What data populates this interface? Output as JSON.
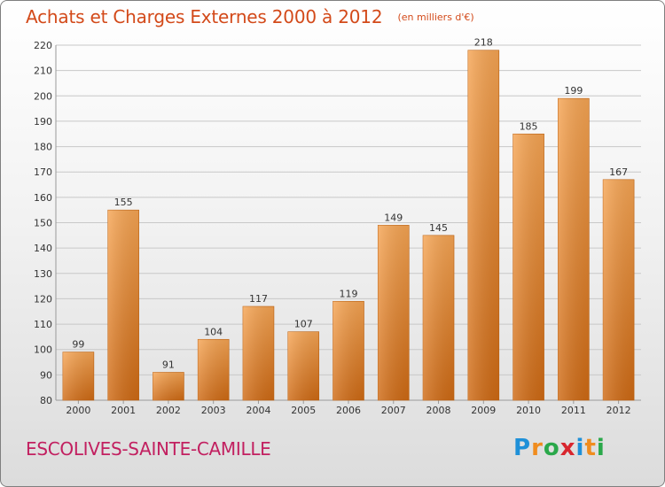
{
  "header": {
    "title": "Achats et Charges Externes 2000 à 2012",
    "subtitle": "(en milliers d'€)"
  },
  "footer": {
    "commune": "ESCOLIVES-SAINTE-CAMILLE",
    "logo_letters": [
      "P",
      "r",
      "o",
      "x",
      "i",
      "t",
      "i"
    ],
    "logo_colors": [
      "#1e90d8",
      "#f08c1e",
      "#2aa84a",
      "#d8262e",
      "#1e90d8",
      "#f08c1e",
      "#2aa84a"
    ]
  },
  "colors": {
    "bar_top": "#f6a554",
    "bar_bottom": "#cf6a14",
    "grid": "#c8c8c8",
    "title": "#d34a1a",
    "commune": "#c22060"
  },
  "chart_data": {
    "type": "bar",
    "title": "Achats et Charges Externes 2000 à 2012",
    "subtitle": "(en milliers d'€)",
    "xlabel": "",
    "ylabel": "",
    "categories": [
      "2000",
      "2001",
      "2002",
      "2003",
      "2004",
      "2005",
      "2006",
      "2007",
      "2008",
      "2009",
      "2010",
      "2011",
      "2012"
    ],
    "values": [
      99,
      155,
      91,
      104,
      117,
      107,
      119,
      149,
      145,
      218,
      185,
      199,
      167
    ],
    "ylim": [
      80,
      220
    ],
    "yticks": [
      80,
      90,
      100,
      110,
      120,
      130,
      140,
      150,
      160,
      170,
      180,
      190,
      200,
      210,
      220
    ],
    "grid": true,
    "legend": "none"
  }
}
